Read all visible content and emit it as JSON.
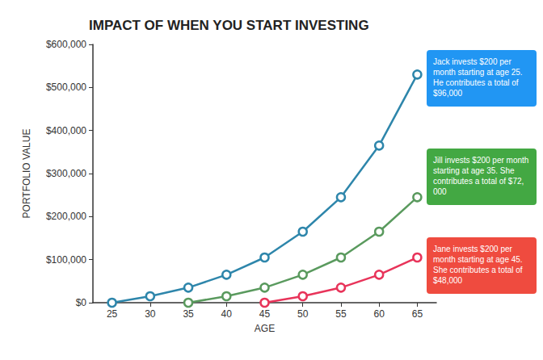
{
  "chart_data": {
    "type": "line",
    "title": "IMPACT OF WHEN YOU START INVESTING",
    "x_label": "AGE",
    "y_label": "PORTFOLIO VALUE",
    "categories": [
      "25",
      "30",
      "35",
      "40",
      "45",
      "50",
      "55",
      "60",
      "65"
    ],
    "ylim": [
      0,
      600000
    ],
    "yticks": [
      {
        "value": 0,
        "label": "$0"
      },
      {
        "value": 100000,
        "label": "$100,000"
      },
      {
        "value": 200000,
        "label": "$200,000"
      },
      {
        "value": 300000,
        "label": "$300,000"
      },
      {
        "value": 400000,
        "label": "$400,000"
      },
      {
        "value": 500000,
        "label": "$500,000"
      },
      {
        "value": 600000,
        "label": "$600,000"
      }
    ],
    "grid": false,
    "marker": "circle",
    "series": [
      {
        "color": "#2e86ab",
        "values": [
          0,
          15000,
          35000,
          65000,
          105000,
          165000,
          245000,
          365000,
          530000
        ],
        "annotation": "Jack invests $200 per month starting at age 25. He contributes a total of $96,000"
      },
      {
        "color": "#5a9a5e",
        "values": [
          null,
          null,
          0,
          15000,
          35000,
          65000,
          105000,
          165000,
          245000
        ],
        "annotation": "Jill invests $200 per month starting at age 35. She contributes a total of $72,000"
      },
      {
        "color": "#e8345a",
        "values": [
          null,
          null,
          null,
          null,
          0,
          15000,
          35000,
          65000,
          105000
        ],
        "annotation": "Jane invests $200 per month starting at age 45. She contributes a total of $48,000"
      }
    ]
  }
}
